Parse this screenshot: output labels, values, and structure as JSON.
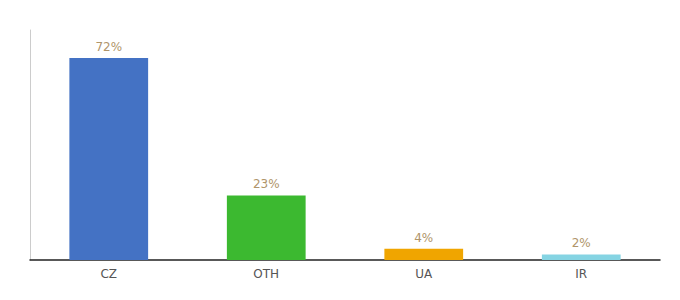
{
  "chart_data": {
    "type": "bar",
    "categories": [
      "CZ",
      "OTH",
      "UA",
      "IR"
    ],
    "values": [
      72,
      23,
      4,
      2
    ],
    "value_labels": [
      "72%",
      "23%",
      "4%",
      "2%"
    ],
    "colors": [
      "#4472c4",
      "#3cb930",
      "#f0a500",
      "#85d4e3"
    ],
    "ylim": [
      0,
      82
    ],
    "tick_labels": "x",
    "data_labels": true,
    "grid": false
  }
}
